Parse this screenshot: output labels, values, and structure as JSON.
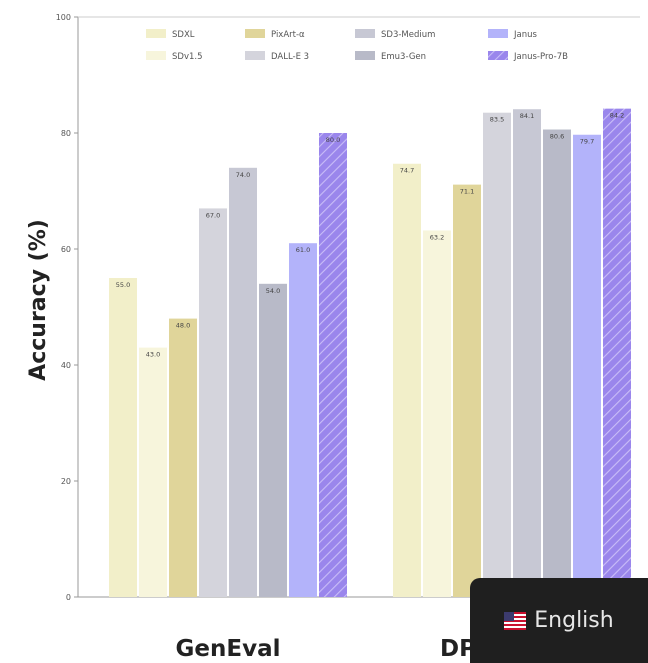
{
  "chart_data": {
    "type": "bar",
    "title": "",
    "ylabel": "Accuracy (%)",
    "xlabel": "",
    "ylim": [
      0,
      100
    ],
    "yticks": [
      0,
      20,
      40,
      60,
      80,
      100
    ],
    "grid": false,
    "legend_position": "top",
    "categories": [
      "GenEval",
      "DPG-Bench"
    ],
    "series": [
      {
        "name": "SDXL",
        "values": [
          55.0,
          74.7
        ],
        "color": "#f2efc9",
        "hatch": false
      },
      {
        "name": "SDv1.5",
        "values": [
          43.0,
          63.2
        ],
        "color": "#f7f5dc",
        "hatch": false
      },
      {
        "name": "PixArt-α",
        "values": [
          48.0,
          71.1
        ],
        "color": "#e0d59a",
        "hatch": false
      },
      {
        "name": "DALL-E 3",
        "values": [
          67.0,
          83.5
        ],
        "color": "#d4d4dc",
        "hatch": false
      },
      {
        "name": "SD3-Medium",
        "values": [
          74.0,
          84.1
        ],
        "color": "#c7c8d4",
        "hatch": false
      },
      {
        "name": "Emu3-Gen",
        "values": [
          54.0,
          80.6
        ],
        "color": "#b8bac8",
        "hatch": false
      },
      {
        "name": "Janus",
        "values": [
          61.0,
          79.7
        ],
        "color": "#b3b3fa",
        "hatch": false
      },
      {
        "name": "Janus-Pro-7B",
        "values": [
          80.0,
          84.2
        ],
        "color": "#9a86ec",
        "hatch": true
      }
    ],
    "value_labels": [
      [
        "55.0",
        "74.7"
      ],
      [
        "43.0",
        "63.2"
      ],
      [
        "48.0",
        "71.1"
      ],
      [
        "67.0",
        "83.5"
      ],
      [
        "74.0",
        "84.1"
      ],
      [
        "54.0",
        "80.6"
      ],
      [
        "61.0",
        "79.7"
      ],
      [
        "80.0",
        "84.2"
      ]
    ]
  },
  "language_popup": {
    "label": "English",
    "flag_icon": "us-flag-icon"
  }
}
